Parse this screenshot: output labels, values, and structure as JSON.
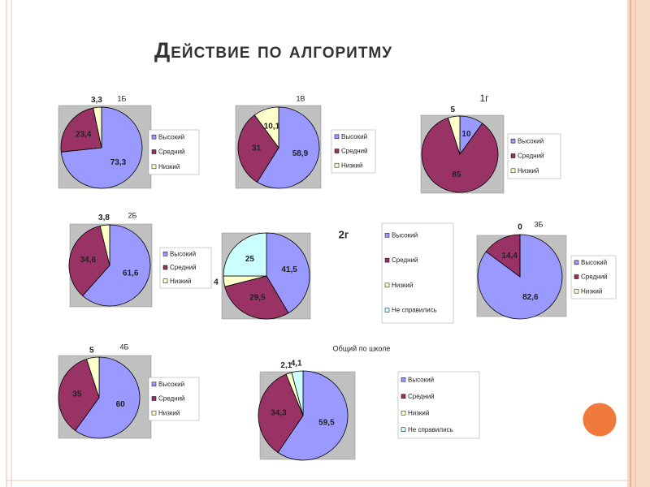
{
  "title": "Действие по алгоритму",
  "chart_data": [
    {
      "type": "pie",
      "title": "1Б",
      "categories": [
        "Высокий",
        "Средний",
        "Низкий"
      ],
      "values": [
        73.3,
        23.4,
        3.3
      ],
      "value_labels": [
        "73,3",
        "23,4",
        "3,3"
      ],
      "colors": [
        "#9999ff",
        "#993366",
        "#ffffcc"
      ]
    },
    {
      "type": "pie",
      "title": "1В",
      "categories": [
        "Высокий",
        "Средний",
        "Низкий"
      ],
      "values": [
        58.9,
        31,
        10.1
      ],
      "value_labels": [
        "58,9",
        "31",
        "10,1"
      ],
      "colors": [
        "#9999ff",
        "#993366",
        "#ffffcc"
      ]
    },
    {
      "type": "pie",
      "title": "1г",
      "categories": [
        "Высокий",
        "Средний",
        "Низкий"
      ],
      "values": [
        10,
        85,
        5
      ],
      "colors": [
        "#9999ff",
        "#993366",
        "#ffffcc"
      ]
    },
    {
      "type": "pie",
      "title": "2Б",
      "categories": [
        "Высокий",
        "Средний",
        "Низкий"
      ],
      "values": [
        61.6,
        34.6,
        3.8
      ],
      "value_labels": [
        "61,6",
        "34,6",
        "3,8"
      ],
      "colors": [
        "#9999ff",
        "#993366",
        "#ffffcc"
      ]
    },
    {
      "type": "pie",
      "title": "2г",
      "categories": [
        "Высокий",
        "Средний",
        "Низкий",
        "Не справились"
      ],
      "values": [
        41.5,
        29.5,
        4,
        25
      ],
      "value_labels": [
        "41,5",
        "29,5",
        "4",
        "25"
      ],
      "colors": [
        "#9999ff",
        "#993366",
        "#ffffcc",
        "#ccffff"
      ]
    },
    {
      "type": "pie",
      "title": "3Б",
      "categories": [
        "Высокий",
        "Средний",
        "Низкий"
      ],
      "values": [
        82.6,
        14.4,
        0
      ],
      "value_labels": [
        "82,6",
        "14,4",
        "0"
      ],
      "colors": [
        "#9999ff",
        "#993366",
        "#ffffcc"
      ]
    },
    {
      "type": "pie",
      "title": "4Б",
      "categories": [
        "Высокий",
        "Средний",
        "Низкий"
      ],
      "values": [
        60,
        35,
        5
      ],
      "colors": [
        "#9999ff",
        "#993366",
        "#ffffcc"
      ]
    },
    {
      "type": "pie",
      "title": "Общий по школе",
      "categories": [
        "Высокий",
        "Средний",
        "Низкий",
        "Не справились"
      ],
      "values": [
        59.5,
        34.3,
        2.1,
        4.1
      ],
      "value_labels": [
        "59,5",
        "34,3",
        "2,1",
        "4,1"
      ],
      "colors": [
        "#9999ff",
        "#993366",
        "#ffffcc",
        "#ccffff"
      ]
    }
  ]
}
